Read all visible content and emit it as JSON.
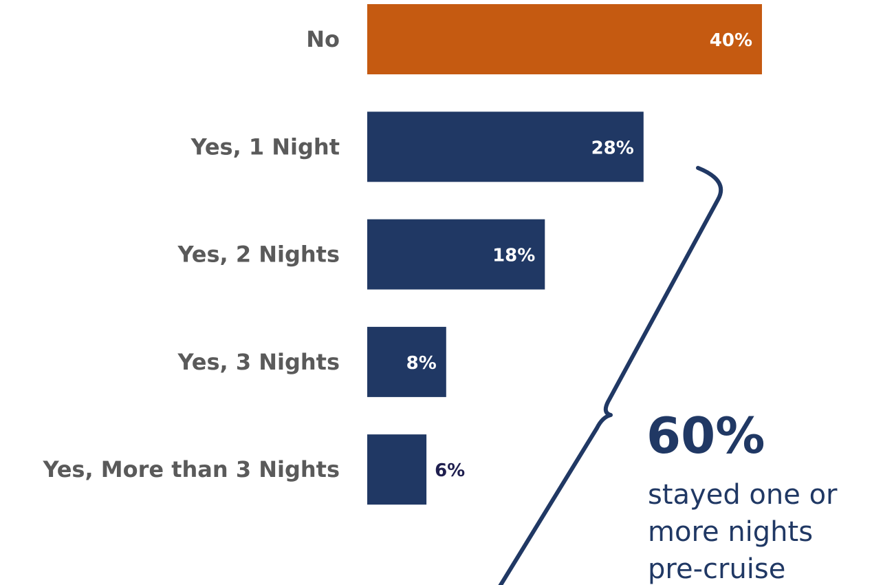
{
  "chart_data": {
    "type": "bar",
    "orientation": "horizontal",
    "categories": [
      "No",
      "Yes, 1 Night",
      "Yes, 2 Nights",
      "Yes, 3 Nights",
      "Yes, More than 3 Nights"
    ],
    "values": [
      40,
      28,
      18,
      8,
      6
    ],
    "value_labels": [
      "40%",
      "28%",
      "18%",
      "8%",
      "6%"
    ],
    "unit": "%",
    "colors": [
      "#c55a11",
      "#203864",
      "#203864",
      "#203864",
      "#203864"
    ],
    "title": "",
    "xlabel": "",
    "ylabel": "",
    "grid": false,
    "legend": "none"
  },
  "callout": {
    "big_value": "60%",
    "text_lines": [
      "stayed one or",
      "more nights",
      "pre-cruise"
    ],
    "color": "#203864"
  },
  "colors": {
    "highlight": "#c55a11",
    "primary": "#203864",
    "category_text": "#5a5a5a",
    "inside_label": "#ffffff",
    "outside_label": "#1f1f4f"
  }
}
